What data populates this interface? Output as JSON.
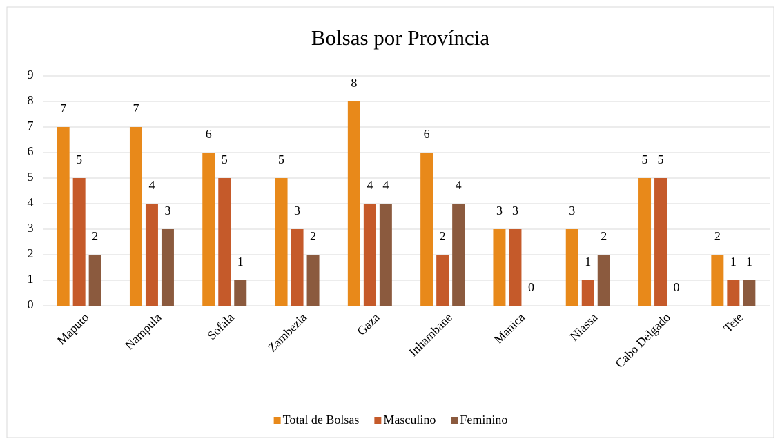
{
  "chart_data": {
    "type": "bar",
    "title": "Bolsas por Província",
    "categories": [
      "Maputo",
      "Nampula",
      "Sofala",
      "Zambezia",
      "Gaza",
      "Inhambane",
      "Manica",
      "Niassa",
      "Cabo Delgado",
      "Tete"
    ],
    "series": [
      {
        "name": "Total de Bolsas",
        "color": "#e8891a",
        "values": [
          7,
          7,
          6,
          5,
          8,
          6,
          3,
          3,
          5,
          2
        ]
      },
      {
        "name": "Masculino",
        "color": "#c55a2a",
        "values": [
          5,
          4,
          5,
          3,
          4,
          2,
          3,
          1,
          5,
          1
        ]
      },
      {
        "name": "Feminino",
        "color": "#8b5a3e",
        "values": [
          2,
          3,
          1,
          2,
          4,
          4,
          0,
          2,
          0,
          1
        ]
      }
    ],
    "ylim": [
      0,
      9
    ],
    "yticks": [
      0,
      1,
      2,
      3,
      4,
      5,
      6,
      7,
      8,
      9
    ],
    "grid": true,
    "legend": "bottom"
  }
}
